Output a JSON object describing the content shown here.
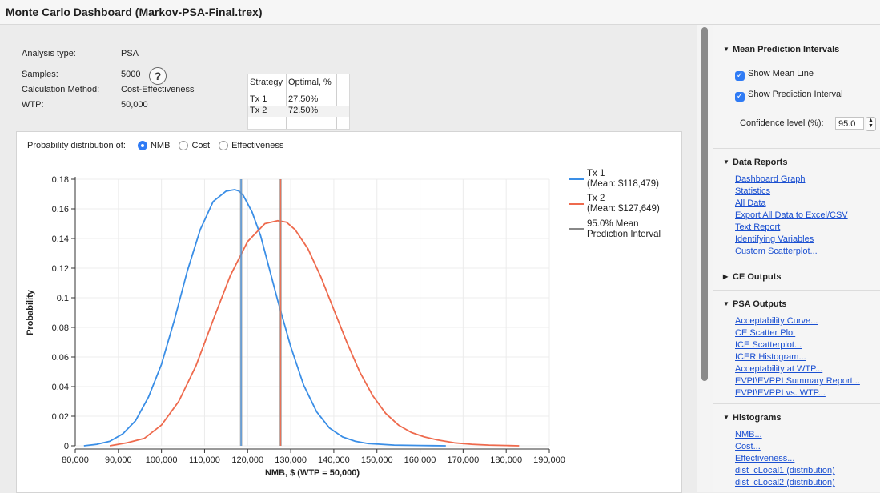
{
  "window": {
    "title": "Monte Carlo Dashboard (Markov-PSA-Final.trex)"
  },
  "summary": {
    "analysis_type_label": "Analysis type:",
    "analysis_type": "PSA",
    "samples_label": "Samples:",
    "samples": "5000",
    "calc_label": "Calculation Method:",
    "calc": "Cost-Effectiveness",
    "wtp_label": "WTP:",
    "wtp": "50,000",
    "help_icon": "question-circle-icon"
  },
  "strategy_table": {
    "headers": [
      "Strategy",
      "Optimal, %"
    ],
    "rows": [
      [
        "Tx 1",
        "27.50%"
      ],
      [
        "Tx 2",
        "72.50%"
      ]
    ]
  },
  "dist": {
    "prompt": "Probability distribution of:",
    "options": [
      "NMB",
      "Cost",
      "Effectiveness"
    ],
    "selected": "NMB"
  },
  "chart_data": {
    "type": "line",
    "xlabel": "NMB, $ (WTP = 50,000)",
    "ylabel": "Probability",
    "xlim": [
      80000,
      190000
    ],
    "ylim": [
      0,
      0.18
    ],
    "x_ticks": [
      "80,000",
      "90,000",
      "100,000",
      "110,000",
      "120,000",
      "130,000",
      "140,000",
      "150,000",
      "160,000",
      "170,000",
      "180,000",
      "190,000"
    ],
    "y_ticks": [
      "0",
      "0.02",
      "0.04",
      "0.06",
      "0.08",
      "0.1",
      "0.12",
      "0.14",
      "0.16",
      "0.18"
    ],
    "grid": true,
    "legend_position": "top-right",
    "series": [
      {
        "name": "Tx 1",
        "mean_label": "(Mean: $118,479)",
        "color": "#3a8ee6",
        "mean": 118479,
        "x": [
          82000,
          85000,
          88000,
          91000,
          94000,
          97000,
          100000,
          103000,
          106000,
          109000,
          112000,
          115000,
          117000,
          118000,
          119000,
          121000,
          123000,
          125000,
          127000,
          130000,
          133000,
          136000,
          139000,
          142000,
          145000,
          148000,
          151000,
          154000,
          157000,
          160000,
          163000,
          166000
        ],
        "y": [
          0,
          0.001,
          0.003,
          0.008,
          0.017,
          0.033,
          0.055,
          0.085,
          0.118,
          0.146,
          0.165,
          0.172,
          0.173,
          0.172,
          0.169,
          0.158,
          0.142,
          0.12,
          0.098,
          0.067,
          0.041,
          0.023,
          0.012,
          0.006,
          0.003,
          0.0015,
          0.001,
          0.0005,
          0.0003,
          0.0002,
          0.0001,
          0
        ]
      },
      {
        "name": "Tx 2",
        "mean_label": "(Mean: $127,649)",
        "color": "#ee6a4d",
        "mean": 127649,
        "x": [
          88000,
          92000,
          96000,
          100000,
          104000,
          108000,
          112000,
          116000,
          120000,
          124000,
          127000,
          129000,
          131000,
          134000,
          137000,
          140000,
          143000,
          146000,
          149000,
          152000,
          155000,
          158000,
          161000,
          164000,
          168000,
          172000,
          176000,
          180000,
          183000
        ],
        "y": [
          0,
          0.002,
          0.005,
          0.014,
          0.03,
          0.054,
          0.085,
          0.115,
          0.138,
          0.15,
          0.152,
          0.151,
          0.146,
          0.133,
          0.114,
          0.092,
          0.07,
          0.05,
          0.034,
          0.022,
          0.014,
          0.009,
          0.006,
          0.004,
          0.002,
          0.001,
          0.0005,
          0.0002,
          0
        ]
      }
    ],
    "interval_label": "95.0% Mean Prediction Interval"
  },
  "sidebar": {
    "mean_pi": {
      "title": "Mean Prediction Intervals",
      "show_mean": "Show Mean Line",
      "show_pi": "Show Prediction Interval",
      "conf_label": "Confidence level (%):",
      "conf_value": "95.0"
    },
    "data_reports": {
      "title": "Data Reports",
      "links": [
        "Dashboard Graph",
        "Statistics",
        "All Data",
        "Export All Data to Excel/CSV",
        "Text Report",
        "Identifying Variables",
        "Custom Scatterplot..."
      ]
    },
    "ce_outputs": {
      "title": "CE Outputs"
    },
    "psa_outputs": {
      "title": "PSA Outputs",
      "links": [
        "Acceptability Curve...",
        "CE Scatter Plot",
        "ICE Scatterplot...",
        "ICER Histogram...",
        "Acceptability at WTP...",
        "EVPI\\EVPPI Summary Report...",
        "EVPI\\EVPPI vs. WTP..."
      ]
    },
    "histograms": {
      "title": "Histograms",
      "links": [
        "NMB...",
        "Cost...",
        "Effectiveness...",
        "dist_cLocal1 (distribution)",
        "dist_cLocal2 (distribution)"
      ]
    }
  }
}
